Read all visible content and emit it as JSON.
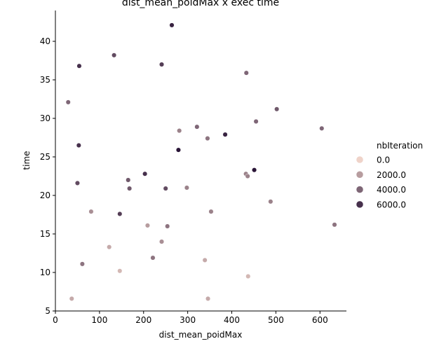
{
  "chart_data": {
    "type": "scatter",
    "title": "dist_mean_poidMax x exec time",
    "xlabel": "dist_mean_poidMax",
    "ylabel": "time",
    "xlim": [
      0,
      660
    ],
    "ylim": [
      5,
      44
    ],
    "xticks": [
      0,
      100,
      200,
      300,
      400,
      500,
      600
    ],
    "yticks": [
      5,
      10,
      15,
      20,
      25,
      30,
      35,
      40
    ],
    "grid": false,
    "legend": {
      "title": "nbIteration",
      "placement": "right",
      "entries": [
        {
          "label": "0.0",
          "value": 0
        },
        {
          "label": "2000.0",
          "value": 2000
        },
        {
          "label": "4000.0",
          "value": 4000
        },
        {
          "label": "6000.0",
          "value": 6000
        }
      ]
    },
    "color_scale": {
      "min": 0,
      "max": 7000,
      "low": "#efd3c9",
      "high": "#2a1537"
    },
    "points": [
      {
        "x": 264,
        "y": 42.1,
        "c": 6500
      },
      {
        "x": 133,
        "y": 38.2,
        "c": 5000
      },
      {
        "x": 54,
        "y": 36.8,
        "c": 6000
      },
      {
        "x": 241,
        "y": 37.0,
        "c": 5500
      },
      {
        "x": 433,
        "y": 35.9,
        "c": 4000
      },
      {
        "x": 29,
        "y": 32.1,
        "c": 4000
      },
      {
        "x": 502,
        "y": 31.2,
        "c": 4500
      },
      {
        "x": 455,
        "y": 29.6,
        "c": 4000
      },
      {
        "x": 321,
        "y": 28.9,
        "c": 4000
      },
      {
        "x": 604,
        "y": 28.7,
        "c": 4000
      },
      {
        "x": 281,
        "y": 28.4,
        "c": 3000
      },
      {
        "x": 385,
        "y": 27.9,
        "c": 6500
      },
      {
        "x": 345,
        "y": 27.4,
        "c": 3500
      },
      {
        "x": 53,
        "y": 26.5,
        "c": 6000
      },
      {
        "x": 279,
        "y": 25.9,
        "c": 7000
      },
      {
        "x": 451,
        "y": 23.3,
        "c": 7000
      },
      {
        "x": 432,
        "y": 22.8,
        "c": 3000
      },
      {
        "x": 436,
        "y": 22.5,
        "c": 3000
      },
      {
        "x": 203,
        "y": 22.8,
        "c": 6000
      },
      {
        "x": 165,
        "y": 22.0,
        "c": 4500
      },
      {
        "x": 50,
        "y": 21.6,
        "c": 5000
      },
      {
        "x": 168,
        "y": 20.9,
        "c": 4500
      },
      {
        "x": 250,
        "y": 20.9,
        "c": 5000
      },
      {
        "x": 298,
        "y": 21.0,
        "c": 3000
      },
      {
        "x": 488,
        "y": 19.2,
        "c": 3000
      },
      {
        "x": 81,
        "y": 17.9,
        "c": 2500
      },
      {
        "x": 146,
        "y": 17.6,
        "c": 5500
      },
      {
        "x": 353,
        "y": 17.9,
        "c": 3000
      },
      {
        "x": 209,
        "y": 16.1,
        "c": 2000
      },
      {
        "x": 254,
        "y": 16.0,
        "c": 3500
      },
      {
        "x": 633,
        "y": 16.2,
        "c": 3500
      },
      {
        "x": 241,
        "y": 14.0,
        "c": 2500
      },
      {
        "x": 122,
        "y": 13.3,
        "c": 1500
      },
      {
        "x": 221,
        "y": 11.9,
        "c": 3500
      },
      {
        "x": 61,
        "y": 11.1,
        "c": 3500
      },
      {
        "x": 339,
        "y": 11.6,
        "c": 1500
      },
      {
        "x": 146,
        "y": 10.2,
        "c": 1000
      },
      {
        "x": 437,
        "y": 9.5,
        "c": 1000
      },
      {
        "x": 37,
        "y": 6.6,
        "c": 1500
      },
      {
        "x": 346,
        "y": 6.6,
        "c": 1500
      }
    ]
  }
}
